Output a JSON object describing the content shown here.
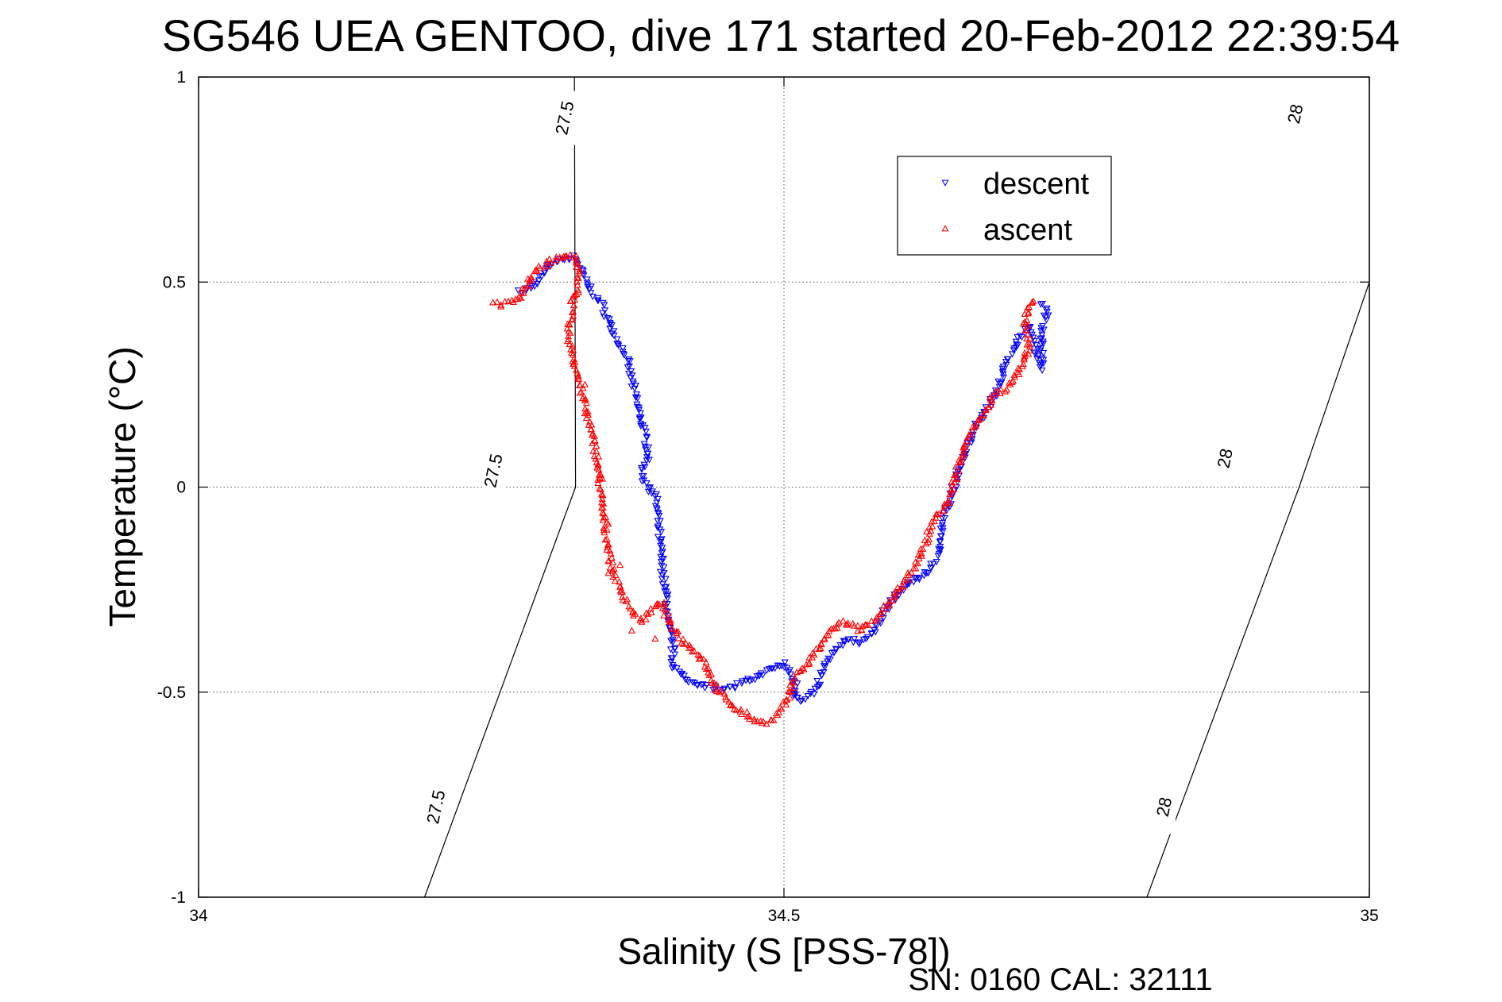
{
  "chart_data": {
    "type": "scatter",
    "title": "SG546 UEA GENTOO, dive 171 started 20-Feb-2012 22:39:54",
    "xlabel": "Salinity (S [PSS-78])",
    "ylabel": "Temperature (°C)",
    "footer": "SN: 0160  CAL: 32111",
    "xlim": [
      34,
      35
    ],
    "ylim": [
      -1,
      1
    ],
    "xticks": [
      34,
      34.5,
      35
    ],
    "yticks": [
      -1,
      -0.5,
      0,
      0.5,
      1
    ],
    "x_tick_labels": [
      "34",
      "34.5",
      "35"
    ],
    "y_tick_labels": [
      "-1",
      "-0.5",
      "0",
      "0.5",
      "1"
    ],
    "grid": true,
    "legend_position": "top-right",
    "density_contours": [
      {
        "label": "27.5",
        "points": [
          [
            34.193,
            -1.0
          ],
          [
            34.322,
            0.0
          ],
          [
            34.321,
            1.0
          ]
        ],
        "label_positions": [
          [
            34.203,
            -0.78
          ],
          [
            34.252,
            0.04
          ],
          [
            34.313,
            0.9
          ]
        ]
      },
      {
        "label": "28",
        "points": [
          [
            34.81,
            -1.0
          ],
          [
            34.94,
            0.0
          ],
          [
            35.0,
            0.5
          ],
          [
            35.0,
            1.0
          ]
        ],
        "label_positions": [
          [
            34.825,
            -0.78
          ],
          [
            34.877,
            0.07
          ],
          [
            34.937,
            0.91
          ]
        ]
      }
    ],
    "series": [
      {
        "name": "descent",
        "color": "#0000ff",
        "marker": "triangle-down",
        "path": [
          [
            34.275,
            0.475
          ],
          [
            34.283,
            0.485
          ],
          [
            34.29,
            0.505
          ],
          [
            34.3,
            0.545
          ],
          [
            34.315,
            0.56
          ],
          [
            34.322,
            0.56
          ],
          [
            34.328,
            0.52
          ],
          [
            34.333,
            0.49
          ],
          [
            34.338,
            0.47
          ],
          [
            34.345,
            0.44
          ],
          [
            34.35,
            0.41
          ],
          [
            34.355,
            0.37
          ],
          [
            34.365,
            0.32
          ],
          [
            34.37,
            0.26
          ],
          [
            34.375,
            0.2
          ],
          [
            34.38,
            0.14
          ],
          [
            34.385,
            0.08
          ],
          [
            34.38,
            0.05
          ],
          [
            34.38,
            0.02
          ],
          [
            34.39,
            -0.02
          ],
          [
            34.393,
            -0.1
          ],
          [
            34.395,
            -0.16
          ],
          [
            34.397,
            -0.22
          ],
          [
            34.4,
            -0.28
          ],
          [
            34.4,
            -0.33
          ],
          [
            34.405,
            -0.38
          ],
          [
            34.405,
            -0.43
          ],
          [
            34.41,
            -0.45
          ],
          [
            34.415,
            -0.47
          ],
          [
            34.43,
            -0.48
          ],
          [
            34.44,
            -0.49
          ],
          [
            34.455,
            -0.49
          ],
          [
            34.47,
            -0.47
          ],
          [
            34.485,
            -0.45
          ],
          [
            34.5,
            -0.43
          ],
          [
            34.51,
            -0.48
          ],
          [
            34.51,
            -0.51
          ],
          [
            34.515,
            -0.52
          ],
          [
            34.525,
            -0.5
          ],
          [
            34.53,
            -0.47
          ],
          [
            34.535,
            -0.43
          ],
          [
            34.545,
            -0.39
          ],
          [
            34.555,
            -0.37
          ],
          [
            34.565,
            -0.38
          ],
          [
            34.575,
            -0.36
          ],
          [
            34.58,
            -0.34
          ],
          [
            34.585,
            -0.31
          ],
          [
            34.59,
            -0.28
          ],
          [
            34.6,
            -0.25
          ],
          [
            34.61,
            -0.23
          ],
          [
            34.62,
            -0.21
          ],
          [
            34.625,
            -0.2
          ],
          [
            34.63,
            -0.17
          ],
          [
            34.635,
            -0.14
          ],
          [
            34.635,
            -0.08
          ],
          [
            34.64,
            -0.05
          ],
          [
            34.645,
            0.0
          ],
          [
            34.65,
            0.04
          ],
          [
            34.655,
            0.08
          ],
          [
            34.66,
            0.12
          ],
          [
            34.665,
            0.15
          ],
          [
            34.67,
            0.18
          ],
          [
            34.68,
            0.22
          ],
          [
            34.685,
            0.26
          ],
          [
            34.69,
            0.3
          ],
          [
            34.695,
            0.33
          ],
          [
            34.7,
            0.36
          ],
          [
            34.705,
            0.38
          ],
          [
            34.71,
            0.39
          ],
          [
            34.715,
            0.34
          ],
          [
            34.72,
            0.29
          ],
          [
            34.72,
            0.38
          ],
          [
            34.725,
            0.43
          ],
          [
            34.718,
            0.45
          ]
        ]
      },
      {
        "name": "ascent",
        "color": "#ff0000",
        "marker": "triangle-up",
        "path": [
          [
            34.253,
            0.45
          ],
          [
            34.26,
            0.445
          ],
          [
            34.27,
            0.455
          ],
          [
            34.275,
            0.465
          ],
          [
            34.282,
            0.5
          ],
          [
            34.29,
            0.53
          ],
          [
            34.3,
            0.55
          ],
          [
            34.31,
            0.56
          ],
          [
            34.32,
            0.565
          ],
          [
            34.323,
            0.54
          ],
          [
            34.325,
            0.51
          ],
          [
            34.324,
            0.48
          ],
          [
            34.32,
            0.46
          ],
          [
            34.318,
            0.42
          ],
          [
            34.315,
            0.38
          ],
          [
            34.32,
            0.32
          ],
          [
            34.325,
            0.26
          ],
          [
            34.33,
            0.2
          ],
          [
            34.335,
            0.14
          ],
          [
            34.34,
            0.08
          ],
          [
            34.342,
            0.03
          ],
          [
            34.345,
            -0.06
          ],
          [
            34.35,
            -0.14
          ],
          [
            34.352,
            -0.19
          ],
          [
            34.36,
            -0.25
          ],
          [
            34.37,
            -0.3
          ],
          [
            34.378,
            -0.33
          ],
          [
            34.39,
            -0.29
          ],
          [
            34.395,
            -0.28
          ],
          [
            34.4,
            -0.32
          ],
          [
            34.41,
            -0.36
          ],
          [
            34.415,
            -0.38
          ],
          [
            34.425,
            -0.4
          ],
          [
            34.435,
            -0.44
          ],
          [
            34.44,
            -0.48
          ],
          [
            34.45,
            -0.52
          ],
          [
            34.46,
            -0.54
          ],
          [
            34.47,
            -0.56
          ],
          [
            34.48,
            -0.575
          ],
          [
            34.49,
            -0.57
          ],
          [
            34.5,
            -0.535
          ],
          [
            34.505,
            -0.5
          ],
          [
            34.51,
            -0.46
          ],
          [
            34.52,
            -0.43
          ],
          [
            34.53,
            -0.39
          ],
          [
            34.54,
            -0.35
          ],
          [
            34.55,
            -0.33
          ],
          [
            34.56,
            -0.34
          ],
          [
            34.565,
            -0.35
          ],
          [
            34.57,
            -0.34
          ],
          [
            34.58,
            -0.32
          ],
          [
            34.59,
            -0.28
          ],
          [
            34.6,
            -0.24
          ],
          [
            34.61,
            -0.2
          ],
          [
            34.62,
            -0.15
          ],
          [
            34.625,
            -0.1
          ],
          [
            34.63,
            -0.07
          ],
          [
            34.64,
            -0.04
          ],
          [
            34.65,
            0.06
          ],
          [
            34.655,
            0.1
          ],
          [
            34.66,
            0.13
          ],
          [
            34.665,
            0.16
          ],
          [
            34.675,
            0.2
          ],
          [
            34.68,
            0.23
          ],
          [
            34.69,
            0.24
          ],
          [
            34.695,
            0.26
          ],
          [
            34.7,
            0.28
          ],
          [
            34.705,
            0.3
          ],
          [
            34.71,
            0.36
          ],
          [
            34.705,
            0.4
          ],
          [
            34.71,
            0.44
          ],
          [
            34.715,
            0.46
          ]
        ],
        "extra_points": [
          [
            34.32,
            0.3
          ],
          [
            34.33,
            0.25
          ],
          [
            34.33,
            0.18
          ],
          [
            34.335,
            0.14
          ],
          [
            34.34,
            0.06
          ],
          [
            34.345,
            0.02
          ],
          [
            34.35,
            -0.09
          ],
          [
            34.36,
            -0.19
          ],
          [
            34.355,
            -0.2
          ],
          [
            34.35,
            -0.21
          ],
          [
            34.37,
            -0.35
          ],
          [
            34.39,
            -0.37
          ]
        ]
      }
    ]
  }
}
